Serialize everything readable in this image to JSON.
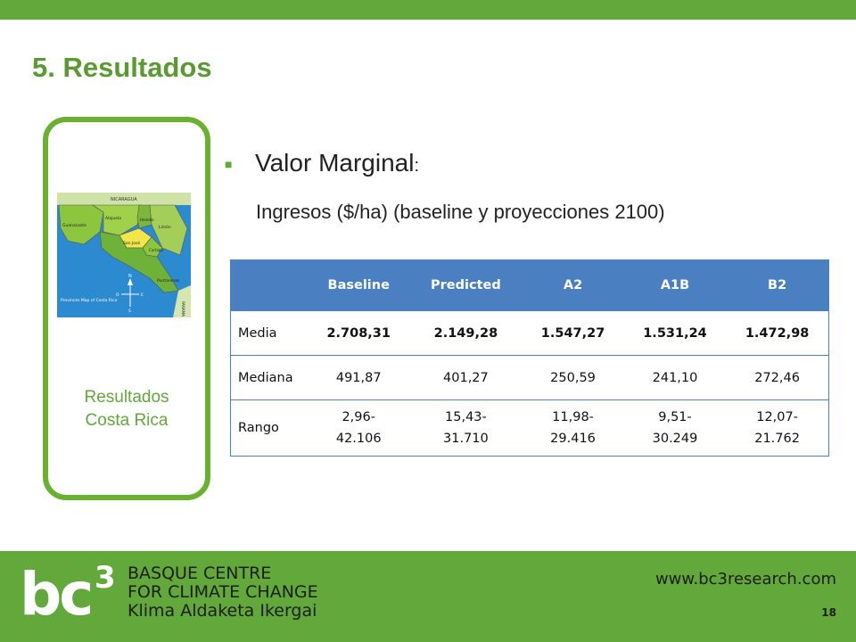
{
  "slide": {
    "title": "5. Resultados",
    "heading": "Valor Marginal",
    "heading_suffix": ":",
    "subheading": "Ingresos ($/ha) (baseline y proyecciones 2100)"
  },
  "side_panel": {
    "caption_line1": "Resultados",
    "caption_line2": "Costa Rica",
    "map_labels": {
      "nicaragua": "NICARAGUA",
      "alajuela": "Alajuela",
      "heredia": "Heredia",
      "guanacaste": "Guanacaste",
      "limon": "Limón",
      "san_jose": "San José",
      "cartago": "Cartago",
      "puntarenas": "Puntarenas",
      "panama": "PANAMA",
      "legend": "Provinces Map of Costa Rica",
      "compass_n": "N",
      "compass_s": "S",
      "compass_o": "O",
      "compass_e": "E"
    }
  },
  "table": {
    "headers": [
      "",
      "Baseline",
      "Predicted",
      "A2",
      "A1B",
      "B2"
    ],
    "rows": [
      {
        "label": "Media",
        "cells": [
          "2.708,31",
          "2.149,28",
          "1.547,27",
          "1.531,24",
          "1.472,98"
        ]
      },
      {
        "label": "Mediana",
        "cells": [
          "491,87",
          "401,27",
          "250,59",
          "241,10",
          "272,46"
        ]
      },
      {
        "label": "Rango",
        "cells": [
          [
            "2,96-",
            "42.106"
          ],
          [
            "15,43-",
            "31.710"
          ],
          [
            "11,98-",
            "29.416"
          ],
          [
            "9,51-",
            "30.249"
          ],
          [
            "12,07-",
            "21.762"
          ]
        ]
      }
    ]
  },
  "footer": {
    "logo_main": "bc",
    "logo_sup": "3",
    "org_line1": "BASQUE CENTRE",
    "org_line2": "FOR CLIMATE CHANGE",
    "org_line3": "Klima Aldaketa Ikergai",
    "url": "www.bc3research.com",
    "page_number": "18"
  },
  "colors": {
    "brand_green": "#62a83a",
    "table_header": "#4a7fc1"
  }
}
